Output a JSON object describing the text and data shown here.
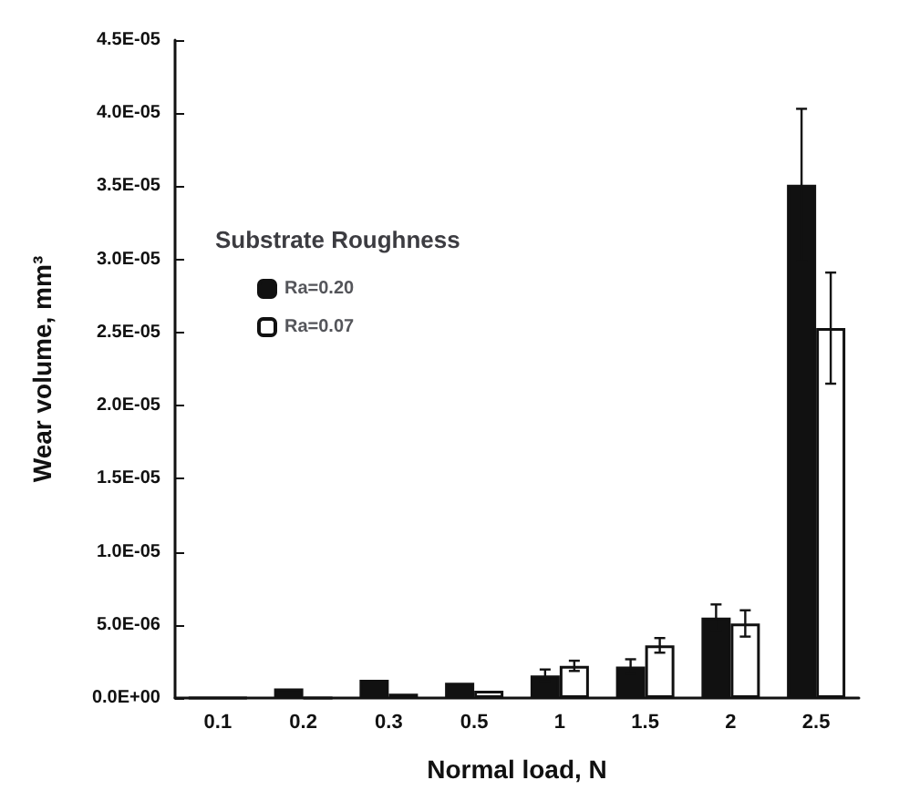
{
  "chart_data": {
    "type": "bar",
    "xlabel": "Normal load, N",
    "ylabel": "Wear volume, mm³",
    "legend_title": "Substrate Roughness",
    "categories": [
      "0.1",
      "0.2",
      "0.3",
      "0.5",
      "1",
      "1.5",
      "2",
      "2.5"
    ],
    "series": [
      {
        "name": "Ra=0.20",
        "color": "#111111",
        "values": [
          0,
          6.5e-07,
          1.25e-06,
          1.05e-06,
          1.55e-06,
          2.15e-06,
          5.5e-06,
          3.51e-05
        ],
        "errors": [
          null,
          null,
          null,
          null,
          4e-07,
          5e-07,
          9e-07,
          5.2e-06
        ]
      },
      {
        "name": "Ra=0.07",
        "color": "#ffffff",
        "values": [
          0,
          0,
          3e-07,
          5e-07,
          2.2e-06,
          3.6e-06,
          5.1e-06,
          2.53e-05
        ],
        "errors": [
          null,
          null,
          null,
          null,
          3.5e-07,
          5e-07,
          9e-07,
          3.8e-06
        ]
      }
    ],
    "ylim": [
      0,
      4.5e-05
    ],
    "yticks": [
      {
        "value": 0,
        "label": "0.0E+00"
      },
      {
        "value": 5e-06,
        "label": "5.0E-06"
      },
      {
        "value": 1e-05,
        "label": "1.0E-05"
      },
      {
        "value": 1.5e-05,
        "label": "1.5E-05"
      },
      {
        "value": 2e-05,
        "label": "2.0E-05"
      },
      {
        "value": 2.5e-05,
        "label": "2.5E-05"
      },
      {
        "value": 3e-05,
        "label": "3.0E-05"
      },
      {
        "value": 3.5e-05,
        "label": "3.5E-05"
      },
      {
        "value": 4e-05,
        "label": "4.0E-05"
      },
      {
        "value": 4.5e-05,
        "label": "4.5E-05"
      }
    ],
    "grid": false,
    "legend": "top left"
  }
}
